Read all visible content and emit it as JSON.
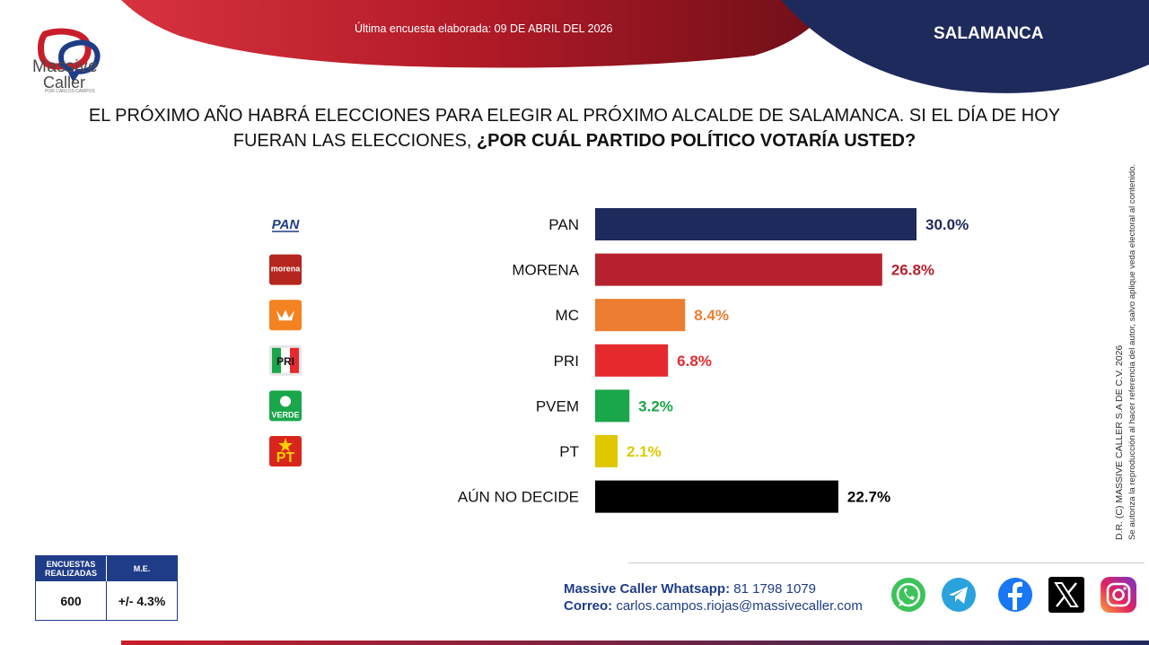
{
  "header": {
    "survey_date": "Última encuesta elaborada: 09 DE ABRIL DEL 2026",
    "region": "SALAMANCA",
    "logo_word1": "Massive",
    "logo_word2": "Caller",
    "logo_sub": "POR CARLOS CAMPOS"
  },
  "question": {
    "line1": "EL PRÓXIMO AÑO HABRÁ ELECCIONES PARA ELEGIR AL PRÓXIMO ALCALDE DE SALAMANCA. SI EL DÍA DE HOY",
    "line2_normal": "FUERAN LAS ELECCIONES, ",
    "line2_bold": "¿POR CUÁL PARTIDO POLÍTICO VOTARÍA USTED?"
  },
  "chart_data": {
    "type": "bar",
    "orientation": "horizontal",
    "categories": [
      "PAN",
      "MORENA",
      "MC",
      "PRI",
      "PVEM",
      "PT",
      "AÚN NO DECIDE"
    ],
    "values": [
      30.0,
      26.8,
      8.4,
      6.8,
      3.2,
      2.1,
      22.7
    ],
    "value_labels": [
      "30.0%",
      "26.8%",
      "8.4%",
      "6.8%",
      "3.2%",
      "2.1%",
      "22.7%"
    ],
    "colors": [
      "#1f2a5c",
      "#b7212f",
      "#ed7d31",
      "#e52a2e",
      "#1aa64a",
      "#e0c800",
      "#000000"
    ],
    "label_colors": [
      "#1f2a5c",
      "#b7212f",
      "#ed7d31",
      "#e52a2e",
      "#1aa64a",
      "#e0c800",
      "#000000"
    ],
    "party_logos": [
      {
        "name": "pan-logo",
        "text": "PAN"
      },
      {
        "name": "morena-logo",
        "text": "morena"
      },
      {
        "name": "mc-logo",
        "text": ""
      },
      {
        "name": "pri-logo",
        "text": "PRI"
      },
      {
        "name": "pvem-logo",
        "text": "VERDE"
      },
      {
        "name": "pt-logo",
        "text": "PT"
      },
      {
        "name": "",
        "text": ""
      }
    ]
  },
  "side_note": {
    "line1": "D.R. (C) MASSIVE CALLER S.A DE C.V. 2026",
    "line2": "Se autoriza la reproducción al hacer referencia del autor, salvo aplique veda electoral al contenido."
  },
  "stats": {
    "col1_header_a": "ENCUESTAS",
    "col1_header_b": "REALIZADAS",
    "col2_header": "M.E.",
    "col1_value": "600",
    "col2_value": "+/- 4.3%"
  },
  "contact": {
    "whatsapp_label": "Massive Caller Whatsapp:",
    "whatsapp_number": " 81 1798 1079",
    "email_label": "Correo:",
    "email": " carlos.campos.riojas@massivecaller.com"
  },
  "social": [
    "whatsapp-icon",
    "telegram-icon",
    "facebook-icon",
    "x-icon",
    "instagram-icon"
  ]
}
